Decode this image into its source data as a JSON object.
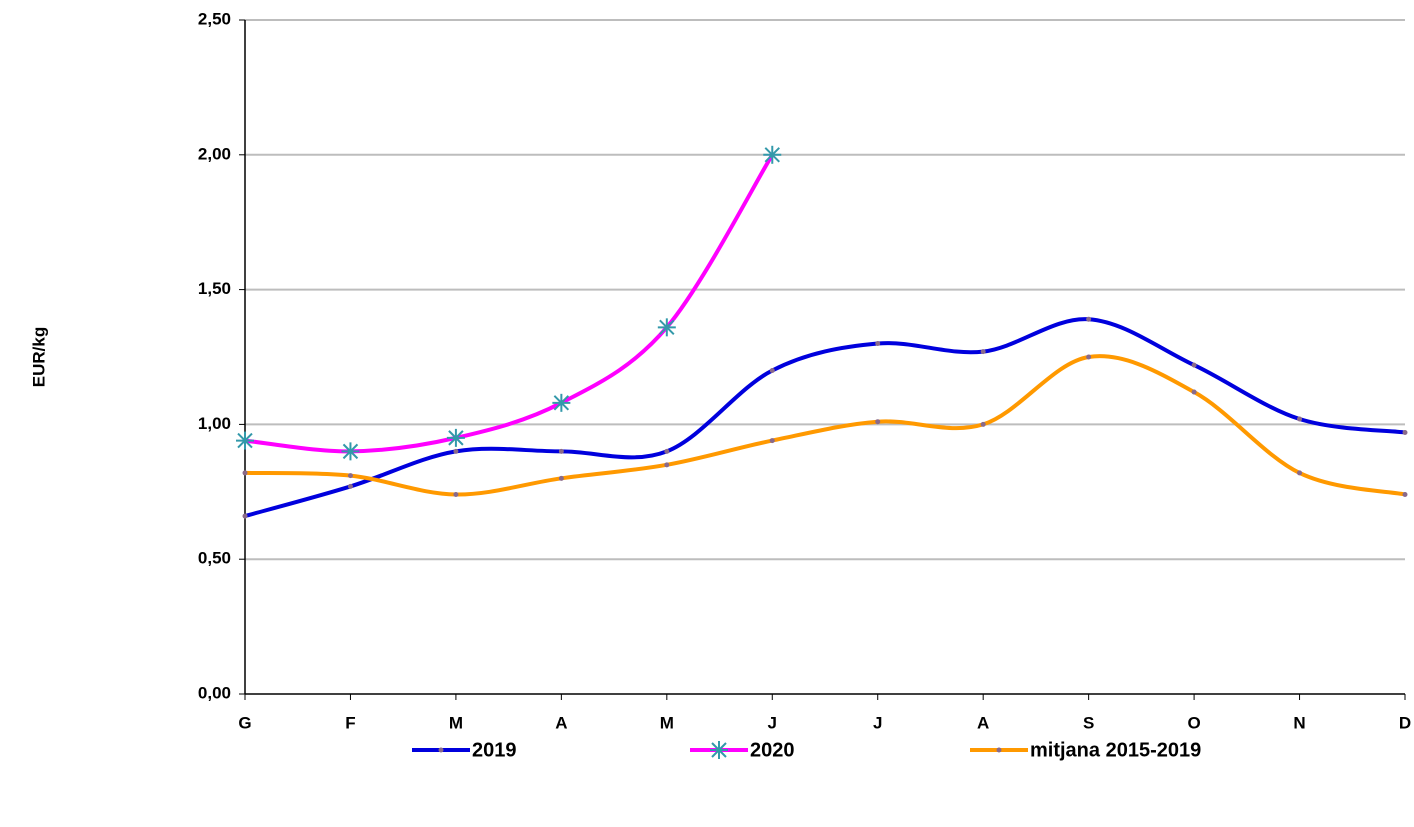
{
  "chart_data": {
    "type": "line",
    "y_label": "EUR/kg",
    "categories": [
      "G",
      "F",
      "M",
      "A",
      "M",
      "J",
      "J",
      "A",
      "S",
      "O",
      "N",
      "D"
    ],
    "series": [
      {
        "name": "2019",
        "color": "#0000dd",
        "marker": "dot",
        "values": [
          0.66,
          0.77,
          0.9,
          0.9,
          0.9,
          1.2,
          1.3,
          1.27,
          1.39,
          1.22,
          1.02,
          0.97
        ]
      },
      {
        "name": "2020",
        "color": "#ff00ff",
        "marker": "asterisk",
        "values": [
          0.94,
          0.9,
          0.95,
          1.08,
          1.36,
          2.0,
          null,
          null,
          null,
          null,
          null,
          null
        ]
      },
      {
        "name": "mitjana 2015-2019",
        "color": "#ff9900",
        "marker": "dot",
        "values": [
          0.82,
          0.81,
          0.74,
          0.8,
          0.85,
          0.94,
          1.01,
          1.0,
          1.25,
          1.12,
          0.82,
          0.74
        ]
      }
    ],
    "ylim": [
      0,
      2.5
    ],
    "yticks": [
      {
        "value": 0,
        "label": "0,00"
      },
      {
        "value": 0.5,
        "label": "0,50"
      },
      {
        "value": 1,
        "label": "1,00"
      },
      {
        "value": 1.5,
        "label": "1,50"
      },
      {
        "value": 2,
        "label": "2,00"
      },
      {
        "value": 2.5,
        "label": "2,50"
      }
    ],
    "grid": true,
    "smooth": true,
    "legend": "bottom"
  }
}
